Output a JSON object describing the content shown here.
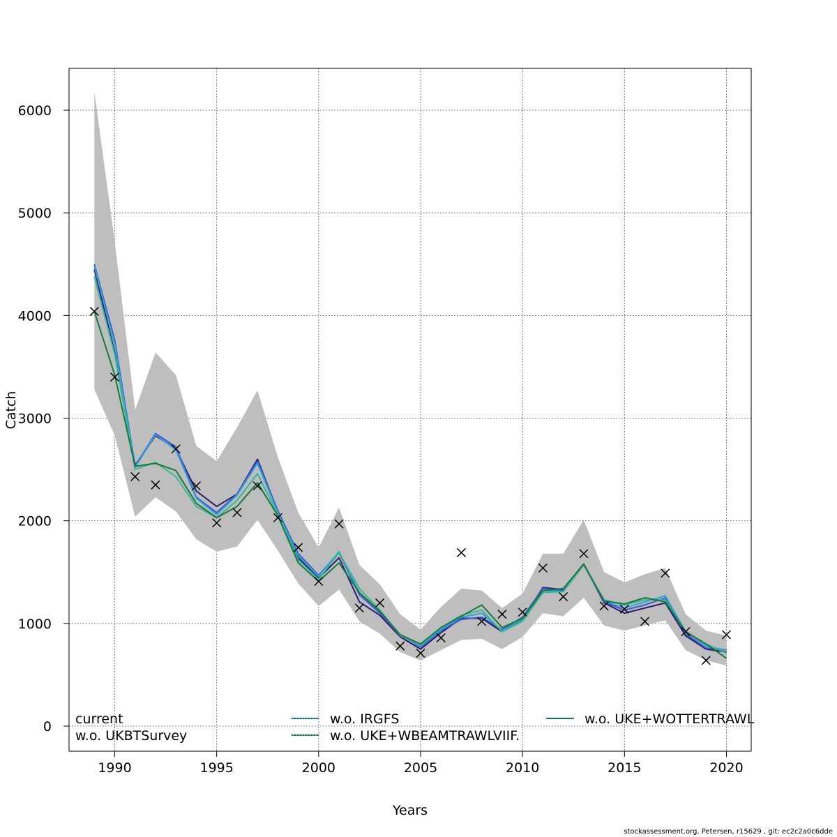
{
  "chart_data": {
    "type": "line",
    "xlabel": "Years",
    "ylabel": "Catch",
    "xlim": [
      1988.2,
      2021.2
    ],
    "ylim": [
      -250,
      6400
    ],
    "xticks": [
      1990,
      1995,
      2000,
      2005,
      2010,
      2015,
      2020
    ],
    "yticks": [
      0,
      1000,
      2000,
      3000,
      4000,
      5000,
      6000
    ],
    "grid": true,
    "legend_position": "bottom",
    "x": [
      1989,
      1990,
      1991,
      1992,
      1993,
      1994,
      1995,
      1996,
      1997,
      1998,
      1999,
      2000,
      2001,
      2002,
      2003,
      2004,
      2005,
      2006,
      2007,
      2008,
      2009,
      2010,
      2011,
      2012,
      2013,
      2014,
      2015,
      2016,
      2017,
      2018,
      2019,
      2020
    ],
    "confidence_band": {
      "lower": [
        3280,
        2830,
        2040,
        2230,
        2090,
        1820,
        1700,
        1750,
        2010,
        1710,
        1390,
        1170,
        1330,
        1020,
        900,
        720,
        640,
        740,
        840,
        850,
        750,
        870,
        1100,
        1070,
        1250,
        980,
        930,
        980,
        1030,
        740,
        640,
        590
      ],
      "upper": [
        6180,
        4720,
        3080,
        3640,
        3420,
        2730,
        2580,
        2910,
        3270,
        2620,
        2080,
        1740,
        2130,
        1570,
        1380,
        1090,
        940,
        1160,
        1340,
        1320,
        1150,
        1290,
        1680,
        1680,
        2010,
        1500,
        1400,
        1480,
        1540,
        1090,
        930,
        880
      ]
    },
    "observed": {
      "marker": "x",
      "values": [
        4040,
        3400,
        2430,
        2350,
        2700,
        2340,
        1980,
        2080,
        2340,
        2030,
        1740,
        1410,
        1970,
        1150,
        1200,
        780,
        710,
        860,
        1690,
        1020,
        1090,
        1110,
        1540,
        1260,
        1680,
        1170,
        1140,
        1020,
        1490,
        920,
        640,
        890
      ]
    },
    "series": [
      {
        "name": "current",
        "color": "#2c1b74",
        "dash": "solid",
        "values": [
          4450,
          3640,
          2540,
          2830,
          2700,
          2290,
          2140,
          2260,
          2600,
          2090,
          1640,
          1440,
          1640,
          1210,
          1080,
          870,
          750,
          910,
          1050,
          1050,
          920,
          1040,
          1350,
          1330,
          1580,
          1200,
          1100,
          1150,
          1200,
          880,
          750,
          720
        ]
      },
      {
        "name": "w.o. UKBTSurvey",
        "color": "#3d57cf",
        "dash": "solid",
        "values": [
          4500,
          3760,
          2530,
          2850,
          2720,
          2230,
          2080,
          2260,
          2580,
          2100,
          1680,
          1470,
          1690,
          1280,
          1100,
          890,
          770,
          930,
          1040,
          1060,
          940,
          1060,
          1340,
          1320,
          1570,
          1210,
          1130,
          1180,
          1250,
          900,
          760,
          740
        ]
      },
      {
        "name": "w.o. IRGFS",
        "color": "#2ea3d6",
        "dash": "dotted",
        "values": [
          4480,
          3720,
          2520,
          2840,
          2690,
          2220,
          2060,
          2250,
          2560,
          2080,
          1660,
          1460,
          1700,
          1300,
          1120,
          890,
          780,
          940,
          1060,
          1100,
          930,
          1040,
          1320,
          1310,
          1570,
          1220,
          1150,
          1210,
          1270,
          920,
          780,
          740
        ]
      },
      {
        "name": "w.o. UKE+WBEAMTRAWLVIIF.",
        "color": "#3cb694",
        "dash": "dotted",
        "values": [
          4380,
          3620,
          2500,
          2570,
          2430,
          2140,
          2030,
          2200,
          2460,
          2060,
          1620,
          1430,
          1690,
          1340,
          1130,
          880,
          790,
          960,
          1080,
          1130,
          920,
          1020,
          1300,
          1310,
          1570,
          1230,
          1180,
          1230,
          1230,
          910,
          800,
          710
        ]
      },
      {
        "name": "w.o. UKE+WOTTERTRAWL",
        "color": "#157a3c",
        "dash": "solid",
        "values": [
          4040,
          3420,
          2530,
          2560,
          2490,
          2170,
          2030,
          2140,
          2370,
          2050,
          1590,
          1410,
          1590,
          1300,
          1120,
          890,
          800,
          960,
          1070,
          1180,
          960,
          1050,
          1320,
          1340,
          1580,
          1220,
          1190,
          1250,
          1210,
          920,
          800,
          660
        ]
      }
    ]
  },
  "legend": [
    {
      "label": "current",
      "color": "#2c1b74",
      "dash": "solid",
      "show_line": false
    },
    {
      "label": "w.o. UKBTSurvey",
      "color": "#3d57cf",
      "dash": "solid",
      "show_line": false
    },
    {
      "label": "w.o. IRGFS",
      "color": "#2ea3d6",
      "dash": "dotted",
      "show_line": true
    },
    {
      "label": "w.o. UKE+WBEAMTRAWLVIIF.",
      "color": "#3cb694",
      "dash": "dotted",
      "show_line": true
    },
    {
      "label": "w.o. UKE+WOTTERTRAWL",
      "color": "#157a3c",
      "dash": "solid",
      "show_line": true
    }
  ],
  "band_color": "#bebebe",
  "footer": "stockassessment.org, Petersen, r15629 , git: ec2c2a0c6dde"
}
